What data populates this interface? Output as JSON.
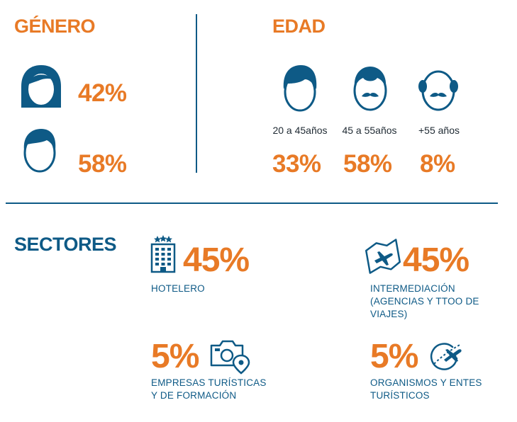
{
  "colors": {
    "accent": "#e87a26",
    "primary": "#0e5a86"
  },
  "genero": {
    "title": "GÉNERO",
    "items": [
      {
        "icon": "woman-icon",
        "value": "42%"
      },
      {
        "icon": "man-icon",
        "value": "58%"
      }
    ]
  },
  "edad": {
    "title": "EDAD",
    "items": [
      {
        "icon": "young-man-icon",
        "label": "20 a 45años",
        "value": "33%"
      },
      {
        "icon": "mustache-man-icon",
        "label": "45 a 55años",
        "value": "58%"
      },
      {
        "icon": "bald-man-icon",
        "label": "+55 años",
        "value": "8%"
      }
    ]
  },
  "sectores": {
    "title": "SECTORES",
    "items": [
      {
        "icon": "hotel-icon",
        "value": "45%",
        "label_lines": [
          "HOTELERO"
        ]
      },
      {
        "icon": "map-plane-icon",
        "value": "45%",
        "label_lines": [
          "INTERMEDIACIÓN",
          "(AGENCIAS Y TTOO DE",
          "VIAJES)"
        ]
      },
      {
        "icon": "camera-location-icon",
        "value": "5%",
        "label_lines": [
          "EMPRESAS TURÍSTICAS",
          "Y DE FORMACIÓN"
        ]
      },
      {
        "icon": "globe-plane-icon",
        "value": "5%",
        "label_lines": [
          "ORGANISMOS Y ENTES",
          "TURÍSTICOS"
        ]
      }
    ]
  },
  "chart_data": [
    {
      "type": "table",
      "title": "GÉNERO",
      "categories": [
        "Mujer",
        "Hombre"
      ],
      "values": [
        42,
        58
      ]
    },
    {
      "type": "table",
      "title": "EDAD",
      "categories": [
        "20 a 45años",
        "45 a 55años",
        "+55 años"
      ],
      "values": [
        33,
        58,
        8
      ]
    },
    {
      "type": "table",
      "title": "SECTORES",
      "categories": [
        "HOTELERO",
        "INTERMEDIACIÓN (AGENCIAS Y TTOO DE VIAJES)",
        "EMPRESAS TURÍSTICAS Y DE FORMACIÓN",
        "ORGANISMOS Y ENTES TURÍSTICOS"
      ],
      "values": [
        45,
        45,
        5,
        5
      ]
    }
  ]
}
